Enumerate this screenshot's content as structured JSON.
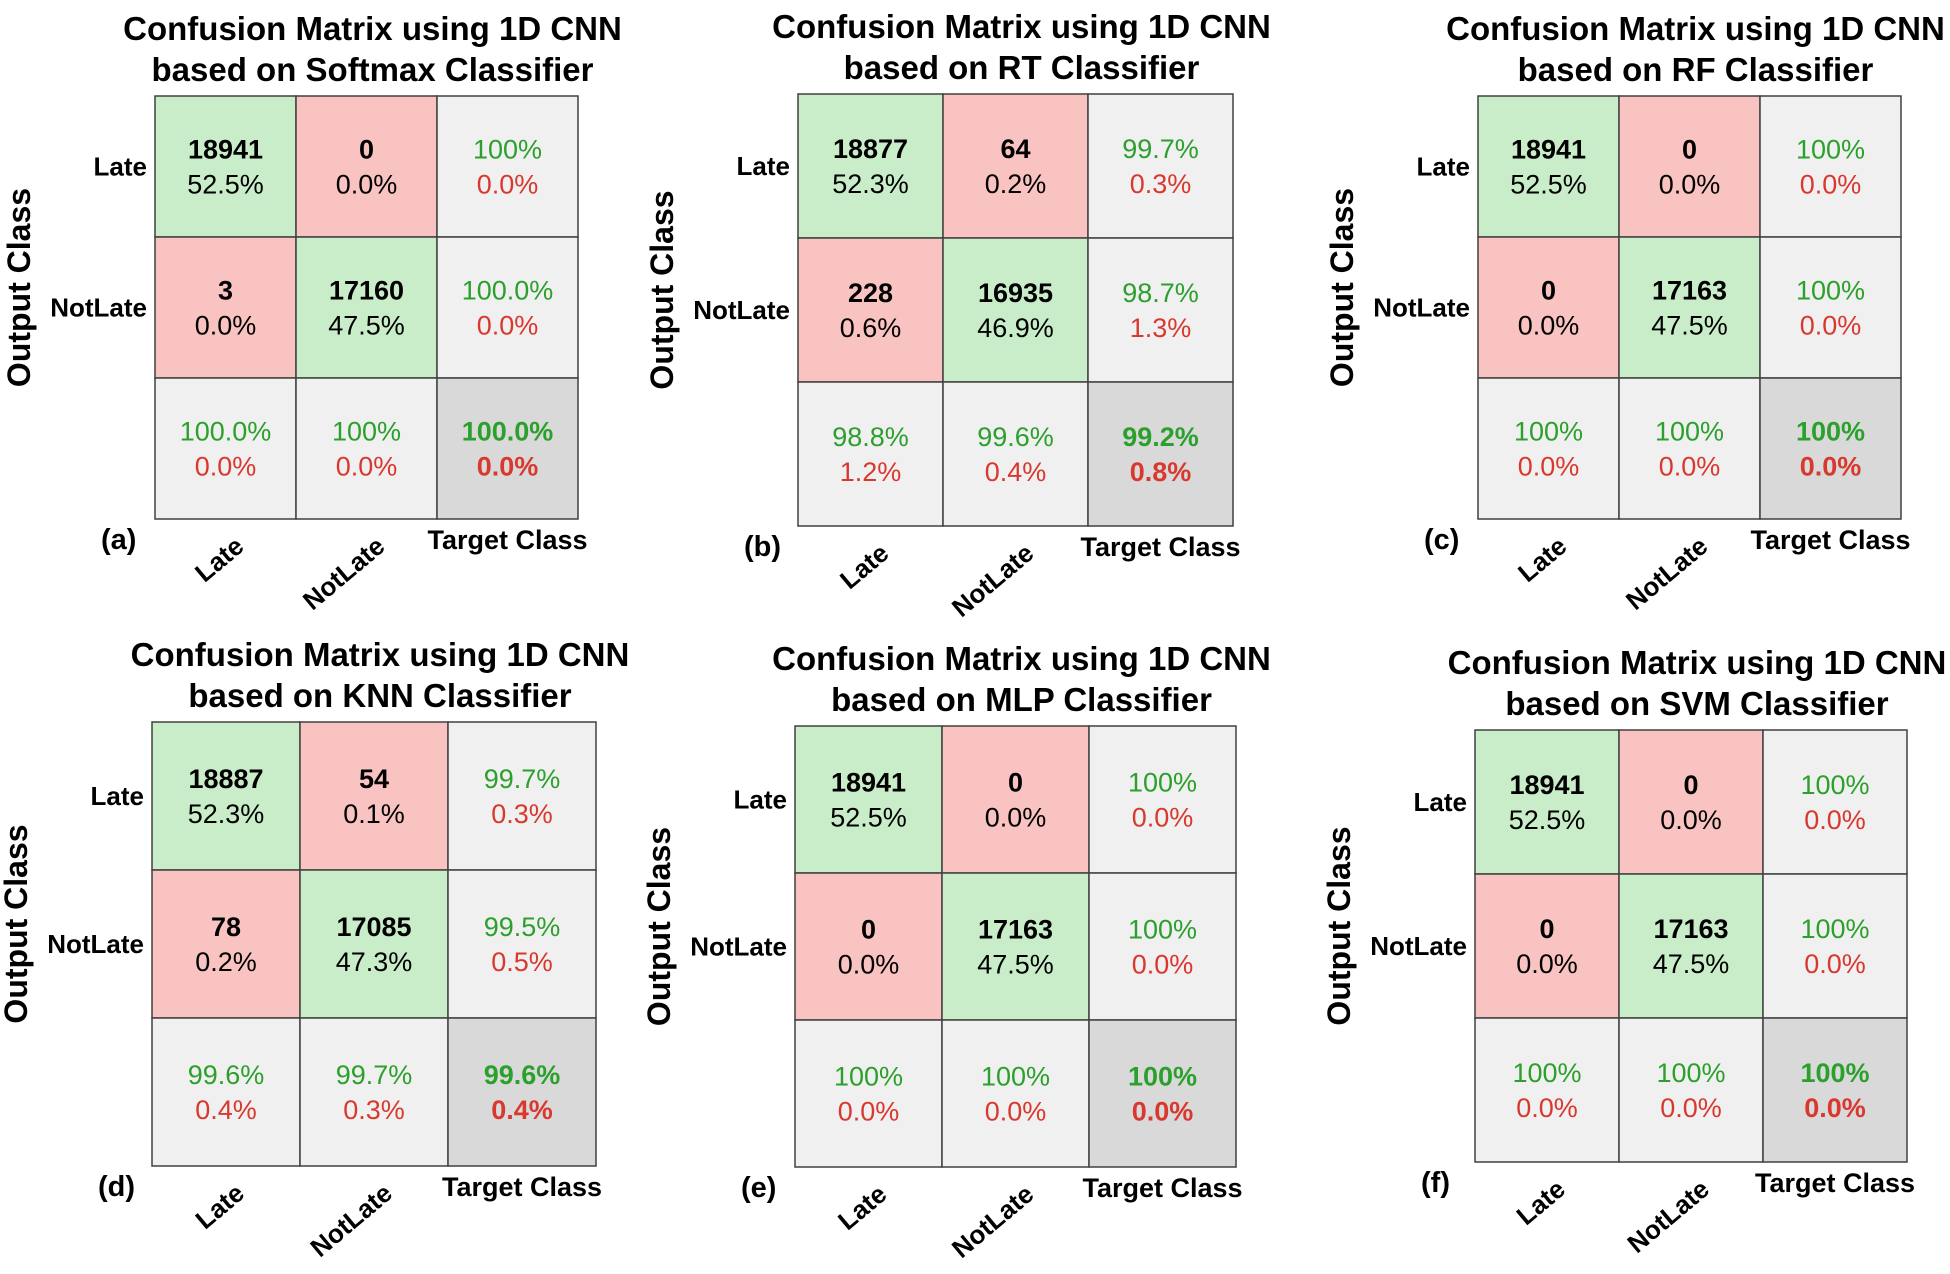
{
  "chart_data": [
    {
      "type": "heatmap",
      "panel_label": "(a)",
      "title_lines": [
        "Confusion Matrix using 1D CNN",
        "based on Softmax Classifier"
      ],
      "ylabel": "Output Class",
      "xlabel": "Target Class",
      "row_labels": [
        "Late",
        "NotLate"
      ],
      "col_labels": [
        "Late",
        "NotLate"
      ],
      "counts": [
        [
          18941,
          0
        ],
        [
          3,
          17160
        ]
      ],
      "percents": [
        [
          "52.5%",
          "0.0%"
        ],
        [
          "0.0%",
          "47.5%"
        ]
      ],
      "row_summary": [
        [
          "100%",
          "0.0%"
        ],
        [
          "100.0%",
          "0.0%"
        ]
      ],
      "col_summary": [
        [
          "100.0%",
          "0.0%"
        ],
        [
          "100%",
          "0.0%"
        ]
      ],
      "overall": [
        "100.0%",
        "0.0%"
      ]
    },
    {
      "type": "heatmap",
      "panel_label": "(b)",
      "title_lines": [
        "Confusion Matrix using 1D CNN",
        "based on RT Classifier"
      ],
      "ylabel": "Output Class",
      "xlabel": "Target Class",
      "row_labels": [
        "Late",
        "NotLate"
      ],
      "col_labels": [
        "Late",
        "NotLate"
      ],
      "counts": [
        [
          18877,
          64
        ],
        [
          228,
          16935
        ]
      ],
      "percents": [
        [
          "52.3%",
          "0.2%"
        ],
        [
          "0.6%",
          "46.9%"
        ]
      ],
      "row_summary": [
        [
          "99.7%",
          "0.3%"
        ],
        [
          "98.7%",
          "1.3%"
        ]
      ],
      "col_summary": [
        [
          "98.8%",
          "1.2%"
        ],
        [
          "99.6%",
          "0.4%"
        ]
      ],
      "overall": [
        "99.2%",
        "0.8%"
      ]
    },
    {
      "type": "heatmap",
      "panel_label": "(c)",
      "title_lines": [
        "Confusion Matrix using 1D CNN",
        "based on RF Classifier"
      ],
      "ylabel": "Output Class",
      "xlabel": "Target Class",
      "row_labels": [
        "Late",
        "NotLate"
      ],
      "col_labels": [
        "Late",
        "NotLate"
      ],
      "counts": [
        [
          18941,
          0
        ],
        [
          0,
          17163
        ]
      ],
      "percents": [
        [
          "52.5%",
          "0.0%"
        ],
        [
          "0.0%",
          "47.5%"
        ]
      ],
      "row_summary": [
        [
          "100%",
          "0.0%"
        ],
        [
          "100%",
          "0.0%"
        ]
      ],
      "col_summary": [
        [
          "100%",
          "0.0%"
        ],
        [
          "100%",
          "0.0%"
        ]
      ],
      "overall": [
        "100%",
        "0.0%"
      ]
    },
    {
      "type": "heatmap",
      "panel_label": "(d)",
      "title_lines": [
        "Confusion Matrix using 1D CNN",
        "based on KNN Classifier"
      ],
      "ylabel": "Output Class",
      "xlabel": "Target Class",
      "row_labels": [
        "Late",
        "NotLate"
      ],
      "col_labels": [
        "Late",
        "NotLate"
      ],
      "counts": [
        [
          18887,
          54
        ],
        [
          78,
          17085
        ]
      ],
      "percents": [
        [
          "52.3%",
          "0.1%"
        ],
        [
          "0.2%",
          "47.3%"
        ]
      ],
      "row_summary": [
        [
          "99.7%",
          "0.3%"
        ],
        [
          "99.5%",
          "0.5%"
        ]
      ],
      "col_summary": [
        [
          "99.6%",
          "0.4%"
        ],
        [
          "99.7%",
          "0.3%"
        ]
      ],
      "overall": [
        "99.6%",
        "0.4%"
      ]
    },
    {
      "type": "heatmap",
      "panel_label": "(e)",
      "title_lines": [
        "Confusion Matrix using 1D CNN",
        "based on MLP Classifier"
      ],
      "ylabel": "Output Class",
      "xlabel": "Target Class",
      "row_labels": [
        "Late",
        "NotLate"
      ],
      "col_labels": [
        "Late",
        "NotLate"
      ],
      "counts": [
        [
          18941,
          0
        ],
        [
          0,
          17163
        ]
      ],
      "percents": [
        [
          "52.5%",
          "0.0%"
        ],
        [
          "0.0%",
          "47.5%"
        ]
      ],
      "row_summary": [
        [
          "100%",
          "0.0%"
        ],
        [
          "100%",
          "0.0%"
        ]
      ],
      "col_summary": [
        [
          "100%",
          "0.0%"
        ],
        [
          "100%",
          "0.0%"
        ]
      ],
      "overall": [
        "100%",
        "0.0%"
      ]
    },
    {
      "type": "heatmap",
      "panel_label": "(f)",
      "title_lines": [
        "Confusion Matrix using 1D CNN",
        "based on SVM Classifier"
      ],
      "ylabel": "Output Class",
      "xlabel": "Target Class",
      "row_labels": [
        "Late",
        "NotLate"
      ],
      "col_labels": [
        "Late",
        "NotLate"
      ],
      "counts": [
        [
          18941,
          0
        ],
        [
          0,
          17163
        ]
      ],
      "percents": [
        [
          "52.5%",
          "0.0%"
        ],
        [
          "0.0%",
          "47.5%"
        ]
      ],
      "row_summary": [
        [
          "100%",
          "0.0%"
        ],
        [
          "100%",
          "0.0%"
        ]
      ],
      "col_summary": [
        [
          "100%",
          "0.0%"
        ],
        [
          "100%",
          "0.0%"
        ]
      ],
      "overall": [
        "100%",
        "0.0%"
      ]
    }
  ],
  "colors": {
    "correct_cell": "#c9ecc9",
    "wrong_cell": "#f8c3c0",
    "summary_cell": "#f0f0f0",
    "overall_cell": "#d9d9d9",
    "good_text": "#2ca02c",
    "bad_text": "#d9382f",
    "grid_line": "#404040"
  }
}
